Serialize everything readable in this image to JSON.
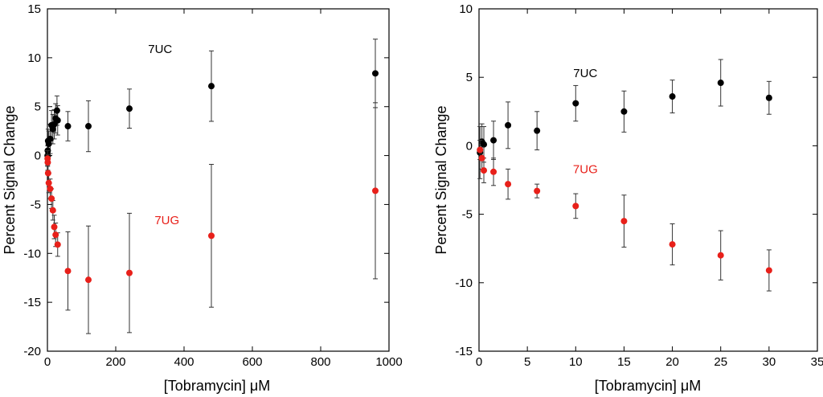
{
  "chart_data": [
    {
      "type": "scatter",
      "title": "",
      "xlabel": "[Tobramycin] μM",
      "ylabel": "Percent Signal Change",
      "xlim": [
        0,
        1000
      ],
      "ylim": [
        -20,
        15
      ],
      "xticks": [
        0,
        200,
        400,
        600,
        800,
        1000
      ],
      "yticks": [
        -20,
        -15,
        -10,
        -5,
        0,
        5,
        10,
        15
      ],
      "grid": false,
      "annotations": [
        {
          "text": "7UC",
          "x": 330,
          "y": 10.5,
          "color": "#000000"
        },
        {
          "text": "7UG",
          "x": 350,
          "y": -7,
          "color": "#e8201a"
        }
      ],
      "series": [
        {
          "name": "7UC",
          "color": "#000000",
          "points": [
            {
              "x": 0.5,
              "y": 0.0,
              "err": 1.0
            },
            {
              "x": 1,
              "y": 0.5,
              "err": 1.0
            },
            {
              "x": 2,
              "y": 1.5,
              "err": 1.2
            },
            {
              "x": 4,
              "y": 1.2,
              "err": 1.3
            },
            {
              "x": 8,
              "y": 1.7,
              "err": 1.5
            },
            {
              "x": 12,
              "y": 3.1,
              "err": 1.5
            },
            {
              "x": 16,
              "y": 2.7,
              "err": 1.5
            },
            {
              "x": 20,
              "y": 3.2,
              "err": 1.5
            },
            {
              "x": 24,
              "y": 3.8,
              "err": 1.5
            },
            {
              "x": 28,
              "y": 4.6,
              "err": 1.5
            },
            {
              "x": 30,
              "y": 3.6,
              "err": 1.5
            },
            {
              "x": 60,
              "y": 3.0,
              "err": 1.5
            },
            {
              "x": 120,
              "y": 3.0,
              "err": 2.6
            },
            {
              "x": 240,
              "y": 4.8,
              "err": 2.0
            },
            {
              "x": 480,
              "y": 7.1,
              "err": 3.6
            },
            {
              "x": 960,
              "y": 8.4,
              "err": 3.5
            }
          ]
        },
        {
          "name": "7UG",
          "color": "#e8201a",
          "points": [
            {
              "x": 0.5,
              "y": -0.3,
              "err": 0.8
            },
            {
              "x": 1,
              "y": -0.7,
              "err": 0.8
            },
            {
              "x": 2,
              "y": -1.8,
              "err": 1.0
            },
            {
              "x": 4,
              "y": -2.8,
              "err": 1.0
            },
            {
              "x": 8,
              "y": -3.4,
              "err": 1.0
            },
            {
              "x": 12,
              "y": -4.4,
              "err": 1.0
            },
            {
              "x": 16,
              "y": -5.6,
              "err": 1.0
            },
            {
              "x": 20,
              "y": -7.3,
              "err": 1.2
            },
            {
              "x": 24,
              "y": -8.1,
              "err": 1.2
            },
            {
              "x": 30,
              "y": -9.1,
              "err": 1.2
            },
            {
              "x": 60,
              "y": -11.8,
              "err": 4.0
            },
            {
              "x": 120,
              "y": -12.7,
              "err": 5.5
            },
            {
              "x": 240,
              "y": -12.0,
              "err": 6.1
            },
            {
              "x": 480,
              "y": -8.2,
              "err": 7.3
            },
            {
              "x": 960,
              "y": -3.6,
              "err": 9.0
            }
          ]
        }
      ]
    },
    {
      "type": "scatter",
      "title": "",
      "xlabel": "[Tobramycin] μM",
      "ylabel": "Percent Signal Change",
      "xlim": [
        0,
        35
      ],
      "ylim": [
        -15,
        10
      ],
      "xticks": [
        0,
        5,
        10,
        15,
        20,
        25,
        30,
        35
      ],
      "yticks": [
        -15,
        -10,
        -5,
        0,
        5,
        10
      ],
      "grid": false,
      "annotations": [
        {
          "text": "7UC",
          "x": 11,
          "y": 5,
          "color": "#000000"
        },
        {
          "text": "7UG",
          "x": 11,
          "y": -2,
          "color": "#e8201a"
        }
      ],
      "series": [
        {
          "name": "7UC",
          "color": "#000000",
          "points": [
            {
              "x": 0.1,
              "y": -0.5,
              "err": 1.9
            },
            {
              "x": 0.3,
              "y": 0.3,
              "err": 1.3
            },
            {
              "x": 0.5,
              "y": 0.1,
              "err": 1.3
            },
            {
              "x": 1.5,
              "y": 0.4,
              "err": 1.4
            },
            {
              "x": 3,
              "y": 1.5,
              "err": 1.7
            },
            {
              "x": 6,
              "y": 1.1,
              "err": 1.4
            },
            {
              "x": 10,
              "y": 3.1,
              "err": 1.3
            },
            {
              "x": 15,
              "y": 2.5,
              "err": 1.5
            },
            {
              "x": 20,
              "y": 3.6,
              "err": 1.2
            },
            {
              "x": 25,
              "y": 4.6,
              "err": 1.7
            },
            {
              "x": 30,
              "y": 3.5,
              "err": 1.2
            }
          ]
        },
        {
          "name": "7UG",
          "color": "#e8201a",
          "points": [
            {
              "x": 0.1,
              "y": -0.3,
              "err": 0.7
            },
            {
              "x": 0.3,
              "y": -0.9,
              "err": 0.8
            },
            {
              "x": 0.5,
              "y": -1.8,
              "err": 0.9
            },
            {
              "x": 1.5,
              "y": -1.9,
              "err": 1.0
            },
            {
              "x": 3,
              "y": -2.8,
              "err": 1.1
            },
            {
              "x": 6,
              "y": -3.3,
              "err": 0.5
            },
            {
              "x": 10,
              "y": -4.4,
              "err": 0.9
            },
            {
              "x": 15,
              "y": -5.5,
              "err": 1.9
            },
            {
              "x": 20,
              "y": -7.2,
              "err": 1.5
            },
            {
              "x": 25,
              "y": -8.0,
              "err": 1.8
            },
            {
              "x": 30,
              "y": -9.1,
              "err": 1.5
            }
          ]
        }
      ]
    }
  ]
}
